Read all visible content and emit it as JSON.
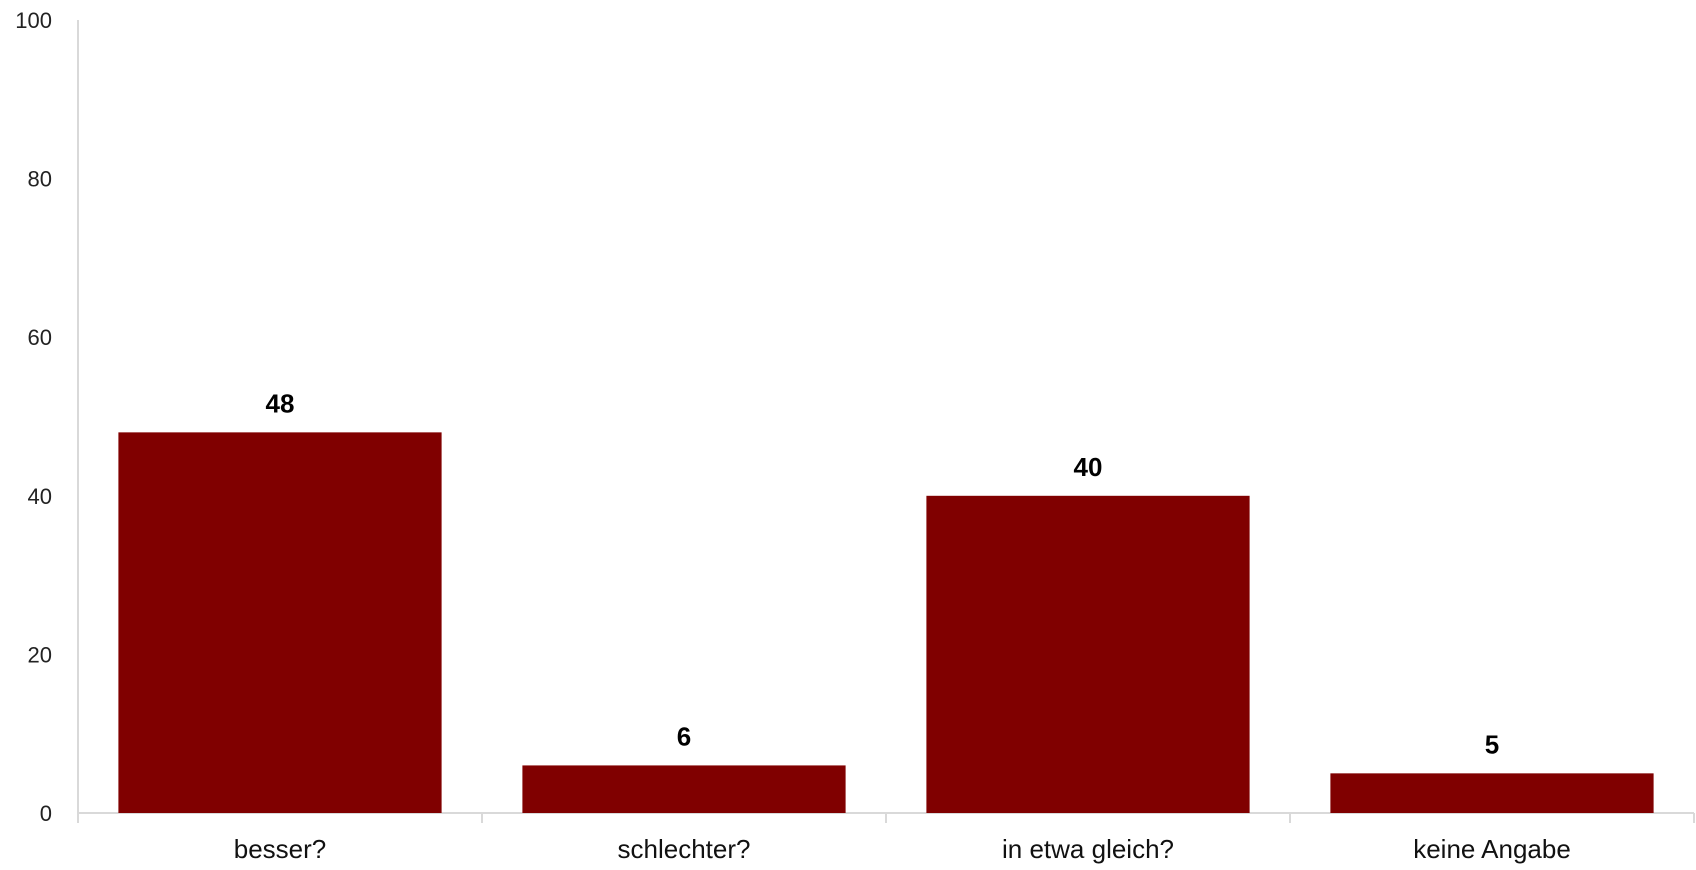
{
  "chart_data": {
    "type": "bar",
    "categories": [
      "besser?",
      "schlechter?",
      "in etwa gleich?",
      "keine Angabe"
    ],
    "values": [
      48,
      6,
      40,
      5
    ],
    "title": "",
    "xlabel": "",
    "ylabel": "",
    "ylim": [
      0,
      100
    ],
    "yticks": [
      0,
      20,
      40,
      60,
      80,
      100
    ],
    "grid": false,
    "legend": "none",
    "data_labels": true,
    "bar_color": "#800000"
  }
}
